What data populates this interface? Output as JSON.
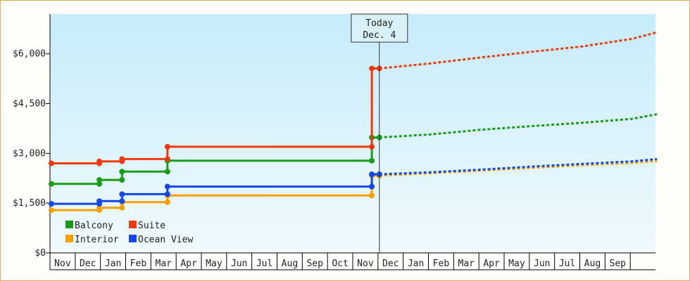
{
  "chart_data": {
    "type": "line",
    "title": "",
    "xlabel": "",
    "ylabel": "",
    "ylim": [
      0,
      7200
    ],
    "y_ticks": [
      0,
      1500,
      3000,
      4500,
      6000
    ],
    "y_tick_labels": [
      "$0",
      "$1,500",
      "$3,000",
      "$4,500",
      "$6,000"
    ],
    "x_tick_labels": [
      "Nov",
      "Dec",
      "Jan",
      "Feb",
      "Mar",
      "Apr",
      "May",
      "Jun",
      "Jul",
      "Aug",
      "Sep",
      "Oct",
      "Nov",
      "Dec",
      "Jan",
      "Feb",
      "Mar",
      "Apr",
      "May",
      "Jun",
      "Jul",
      "Aug",
      "Sep"
    ],
    "today_marker": {
      "line1": "Today",
      "line2": "Dec. 4",
      "x": 13.0
    },
    "legend_placement": "bottom-left",
    "grid": false,
    "background": "gradient sky blue",
    "series": [
      {
        "name": "Balcony",
        "color": "#1a9c1a",
        "history": [
          [
            0.0,
            2080
          ],
          [
            1.9,
            2080
          ],
          [
            1.9,
            2200
          ],
          [
            2.8,
            2200
          ],
          [
            2.8,
            2450
          ],
          [
            4.6,
            2450
          ],
          [
            4.6,
            2780
          ],
          [
            12.7,
            2780
          ],
          [
            12.7,
            3480
          ],
          [
            13.0,
            3480
          ]
        ],
        "forecast": [
          [
            13.0,
            3480
          ],
          [
            15.0,
            3570
          ],
          [
            17.0,
            3710
          ],
          [
            19.0,
            3820
          ],
          [
            21.0,
            3920
          ],
          [
            23.0,
            4040
          ],
          [
            24.0,
            4180
          ]
        ],
        "markers": [
          [
            0.0,
            2080
          ],
          [
            1.9,
            2080
          ],
          [
            1.9,
            2200
          ],
          [
            2.8,
            2200
          ],
          [
            2.8,
            2450
          ],
          [
            4.6,
            2450
          ],
          [
            4.6,
            2780
          ],
          [
            12.7,
            2780
          ],
          [
            12.7,
            3480
          ],
          [
            13.0,
            3480
          ]
        ]
      },
      {
        "name": "Suite",
        "color": "#ee3a0e",
        "history": [
          [
            0.0,
            2700
          ],
          [
            1.9,
            2700
          ],
          [
            1.9,
            2760
          ],
          [
            2.8,
            2760
          ],
          [
            2.8,
            2830
          ],
          [
            4.6,
            2830
          ],
          [
            4.6,
            3200
          ],
          [
            12.7,
            3200
          ],
          [
            12.7,
            5560
          ],
          [
            13.0,
            5560
          ]
        ],
        "forecast": [
          [
            13.0,
            5560
          ],
          [
            15.0,
            5710
          ],
          [
            17.0,
            5890
          ],
          [
            19.0,
            6060
          ],
          [
            21.0,
            6220
          ],
          [
            23.0,
            6450
          ],
          [
            24.0,
            6650
          ]
        ],
        "markers": [
          [
            0.0,
            2700
          ],
          [
            1.9,
            2700
          ],
          [
            1.9,
            2760
          ],
          [
            2.8,
            2760
          ],
          [
            2.8,
            2830
          ],
          [
            4.6,
            2830
          ],
          [
            4.6,
            3200
          ],
          [
            12.7,
            3200
          ],
          [
            12.7,
            5560
          ],
          [
            13.0,
            5560
          ]
        ]
      },
      {
        "name": "Interior",
        "color": "#f5a000",
        "history": [
          [
            0.0,
            1290
          ],
          [
            1.9,
            1290
          ],
          [
            1.9,
            1360
          ],
          [
            2.8,
            1360
          ],
          [
            2.8,
            1530
          ],
          [
            4.6,
            1530
          ],
          [
            4.6,
            1730
          ],
          [
            12.7,
            1730
          ],
          [
            12.7,
            2330
          ],
          [
            13.0,
            2330
          ]
        ],
        "forecast": [
          [
            13.0,
            2330
          ],
          [
            15.0,
            2400
          ],
          [
            17.0,
            2480
          ],
          [
            19.0,
            2560
          ],
          [
            21.0,
            2640
          ],
          [
            23.0,
            2710
          ],
          [
            24.0,
            2770
          ]
        ],
        "markers": [
          [
            0.0,
            1290
          ],
          [
            1.9,
            1290
          ],
          [
            1.9,
            1360
          ],
          [
            2.8,
            1360
          ],
          [
            2.8,
            1530
          ],
          [
            4.6,
            1530
          ],
          [
            4.6,
            1730
          ],
          [
            12.7,
            1730
          ],
          [
            12.7,
            2330
          ],
          [
            13.0,
            2330
          ]
        ]
      },
      {
        "name": "Ocean View",
        "color": "#1446e8",
        "history": [
          [
            0.0,
            1480
          ],
          [
            1.9,
            1480
          ],
          [
            1.9,
            1560
          ],
          [
            2.8,
            1560
          ],
          [
            2.8,
            1770
          ],
          [
            4.6,
            1770
          ],
          [
            4.6,
            2000
          ],
          [
            12.7,
            2000
          ],
          [
            12.7,
            2370
          ],
          [
            13.0,
            2370
          ]
        ],
        "forecast": [
          [
            13.0,
            2370
          ],
          [
            15.0,
            2430
          ],
          [
            17.0,
            2510
          ],
          [
            19.0,
            2600
          ],
          [
            21.0,
            2680
          ],
          [
            23.0,
            2760
          ],
          [
            24.0,
            2830
          ]
        ],
        "markers": [
          [
            0.0,
            1480
          ],
          [
            1.9,
            1480
          ],
          [
            1.9,
            1560
          ],
          [
            2.8,
            1560
          ],
          [
            2.8,
            1770
          ],
          [
            4.6,
            1770
          ],
          [
            4.6,
            2000
          ],
          [
            12.7,
            2000
          ],
          [
            12.7,
            2370
          ],
          [
            13.0,
            2370
          ]
        ]
      }
    ]
  }
}
